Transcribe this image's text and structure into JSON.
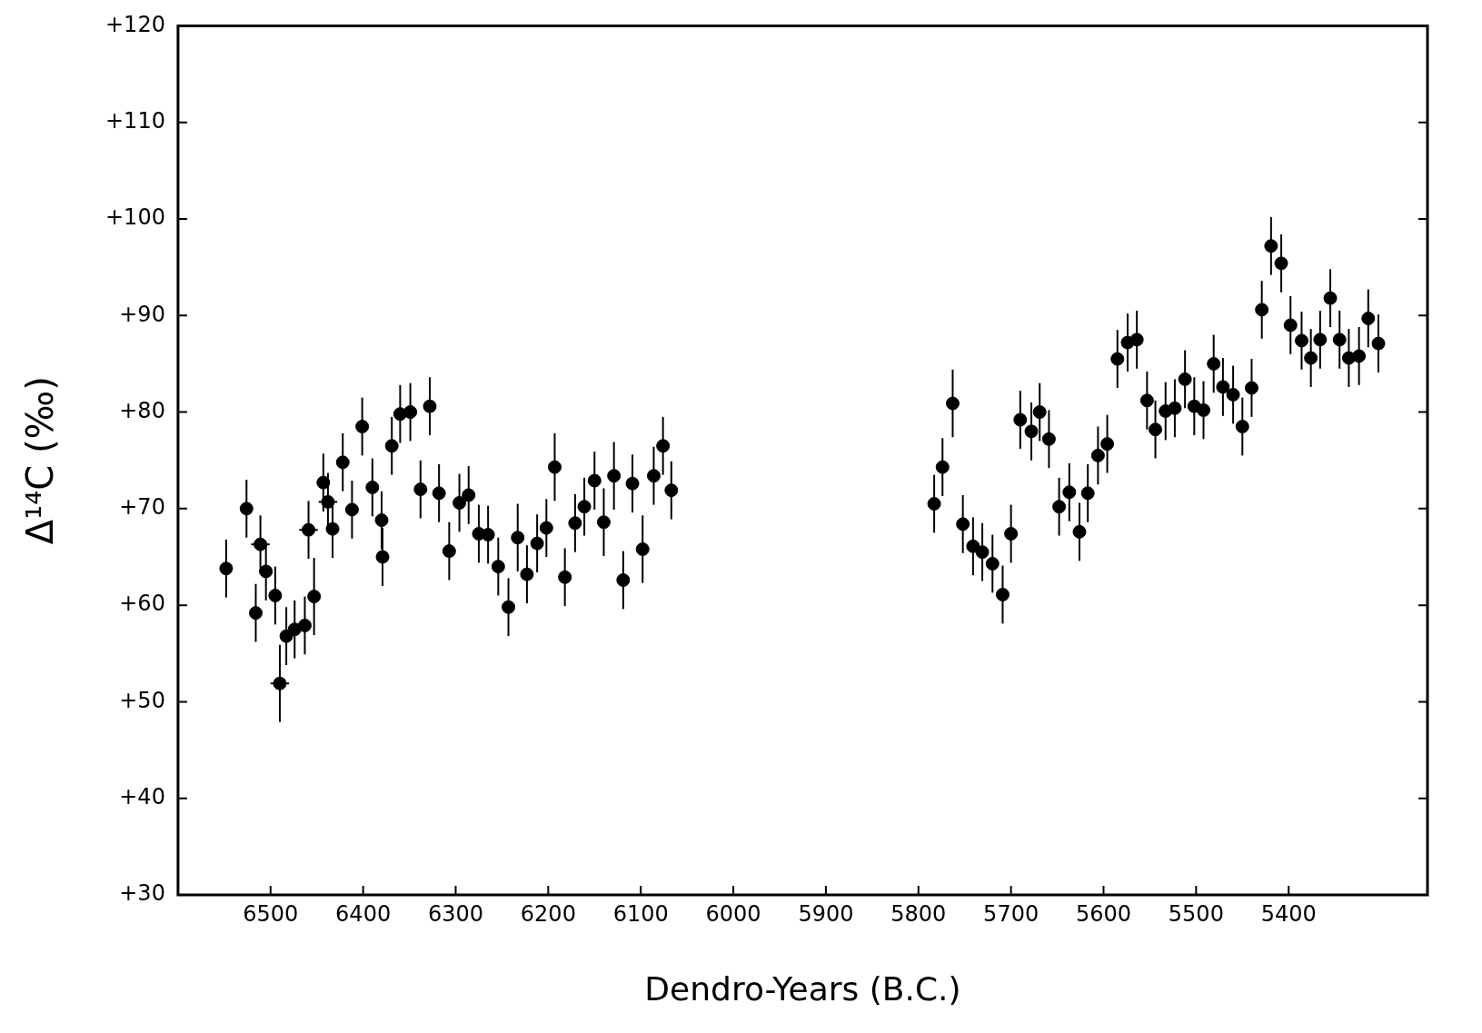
{
  "chart_data": {
    "type": "scatter",
    "xlabel": "Dendro-Years (B.C.)",
    "ylabel": "Δ¹⁴C (‰)",
    "marker": "circle",
    "grid": false,
    "legend": false,
    "xlim": [
      6600,
      5250
    ],
    "ylim": [
      30,
      120
    ],
    "xticks": [
      6500,
      6400,
      6300,
      6200,
      6100,
      6000,
      5900,
      5800,
      5700,
      5600,
      5500,
      5400
    ],
    "yticks": [
      {
        "value": 30,
        "label": "+30"
      },
      {
        "value": 40,
        "label": "+40"
      },
      {
        "value": 50,
        "label": "+50"
      },
      {
        "value": 60,
        "label": "+60"
      },
      {
        "value": 70,
        "label": "+70"
      },
      {
        "value": 80,
        "label": "+80"
      },
      {
        "value": 90,
        "label": "+90"
      },
      {
        "value": 100,
        "label": "+100"
      },
      {
        "value": 110,
        "label": "+110"
      },
      {
        "value": 120,
        "label": "+120"
      }
    ],
    "series": [
      {
        "color": "#000000",
        "x": [
          6548,
          6526,
          6511,
          6516,
          6505,
          6495,
          6490,
          6483,
          6474,
          6463,
          6453,
          6459,
          6443,
          6438,
          6433,
          6422,
          6412,
          6401,
          6390,
          6380,
          6379,
          6369,
          6360,
          6349,
          6338,
          6328,
          6318,
          6307,
          6296,
          6286,
          6275,
          6265,
          6254,
          6243,
          6233,
          6223,
          6212,
          6202,
          6193,
          6182,
          6171,
          6161,
          6150,
          6140,
          6129,
          6119,
          6109,
          6098,
          6086,
          6076,
          6067,
          5783,
          5774,
          5763,
          5752,
          5741,
          5731,
          5720,
          5709,
          5700,
          5690,
          5678,
          5669,
          5659,
          5648,
          5637,
          5626,
          5617,
          5606,
          5596,
          5585,
          5574,
          5564,
          5553,
          5544,
          5533,
          5523,
          5512,
          5502,
          5492,
          5481,
          5471,
          5460,
          5450,
          5440,
          5429,
          5419,
          5408,
          5398,
          5386,
          5376,
          5366,
          5355,
          5345,
          5335,
          5324,
          5314,
          5303
        ],
        "values": [
          63.8,
          70.0,
          66.3,
          59.2,
          63.5,
          61.0,
          51.9,
          56.8,
          57.5,
          57.9,
          60.9,
          67.8,
          72.7,
          70.7,
          67.9,
          74.8,
          69.9,
          78.5,
          72.2,
          68.8,
          65.0,
          76.5,
          79.8,
          80.0,
          72.0,
          80.6,
          71.6,
          65.6,
          70.6,
          71.4,
          67.4,
          67.3,
          64.0,
          59.8,
          67.0,
          63.2,
          66.4,
          68.0,
          74.3,
          62.9,
          68.5,
          70.2,
          72.9,
          68.6,
          73.4,
          62.6,
          72.6,
          65.8,
          73.4,
          76.5,
          71.9,
          70.5,
          74.3,
          80.9,
          68.4,
          66.1,
          65.5,
          64.3,
          61.1,
          67.4,
          79.2,
          78.0,
          80.0,
          77.2,
          70.2,
          71.7,
          67.6,
          71.6,
          75.5,
          76.7,
          85.5,
          87.2,
          87.5,
          81.2,
          78.2,
          80.1,
          80.4,
          83.4,
          80.6,
          80.2,
          85.0,
          82.6,
          81.8,
          78.5,
          82.5,
          90.6,
          97.2,
          95.4,
          89.0,
          87.4,
          85.6,
          87.5,
          91.8,
          87.5,
          85.6,
          85.8,
          89.7,
          87.1
        ],
        "errors": [
          3,
          3,
          3,
          3,
          3,
          3,
          4,
          3,
          3,
          3,
          4,
          3,
          3,
          3,
          3,
          3,
          3,
          3,
          3,
          3,
          3,
          3,
          3,
          3,
          3,
          3,
          3,
          3,
          3,
          3,
          3,
          3,
          3,
          3,
          3.5,
          3,
          3,
          3,
          3.5,
          3,
          3,
          3,
          3,
          3.5,
          3.5,
          3,
          3,
          3.5,
          3,
          3,
          3,
          3,
          3,
          3.5,
          3,
          3,
          3,
          3,
          3,
          3,
          3,
          3,
          3,
          3,
          3,
          3,
          3,
          3,
          3,
          3,
          3,
          3,
          3,
          3,
          3,
          3,
          3,
          3,
          3,
          3,
          3,
          3,
          3,
          3,
          3,
          3,
          3,
          3,
          3,
          3,
          3,
          3,
          3,
          3,
          3,
          3,
          3,
          3
        ],
        "xerrors": [
          null,
          null,
          10,
          null,
          null,
          null,
          10,
          null,
          null,
          null,
          null,
          10,
          null,
          10,
          null,
          null,
          null,
          null,
          null,
          null,
          null,
          null,
          null,
          null,
          null,
          null,
          null,
          null,
          null,
          null,
          null,
          null,
          null,
          null,
          null,
          null,
          null,
          null,
          null,
          null,
          null,
          null,
          null,
          null,
          null,
          null,
          null,
          null,
          null,
          null,
          null,
          null,
          null,
          null,
          null,
          null,
          null,
          null,
          null,
          null,
          null,
          null,
          null,
          null,
          null,
          null,
          null,
          null,
          null,
          null,
          null,
          null,
          null,
          null,
          null,
          null,
          null,
          null,
          null,
          null,
          null,
          null,
          null,
          null,
          null,
          null,
          null,
          null,
          null,
          null,
          null,
          null,
          null,
          null,
          null,
          null,
          null,
          null
        ]
      }
    ]
  }
}
